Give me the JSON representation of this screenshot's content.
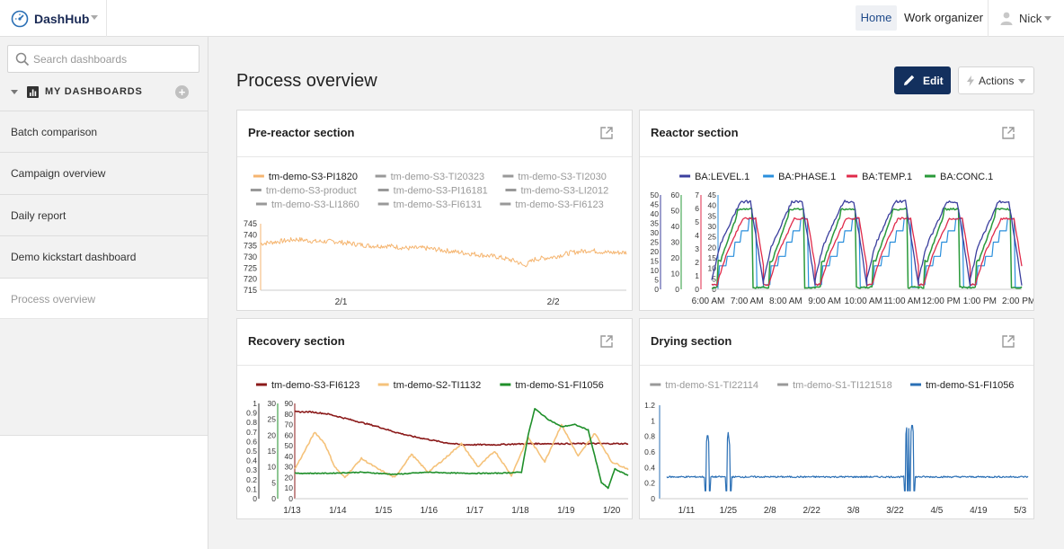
{
  "app": {
    "name": "DashHub"
  },
  "nav": {
    "home": "Home",
    "work_organizer": "Work organizer",
    "user": "Nick"
  },
  "sidebar": {
    "search_placeholder": "Search dashboards",
    "section_label": "MY DASHBOARDS",
    "add_label": "+",
    "items": [
      {
        "label": "Batch comparison"
      },
      {
        "label": "Campaign overview"
      },
      {
        "label": "Daily report"
      },
      {
        "label": "Demo kickstart dashboard"
      },
      {
        "label": "Process overview",
        "active": true
      }
    ]
  },
  "page": {
    "title": "Process overview",
    "edit_label": "Edit",
    "actions_label": "Actions"
  },
  "colors": {
    "accent": "#13305e",
    "brand": "#1a2a55"
  },
  "panels": {
    "pre_reactor": {
      "title": "Pre-reactor section"
    },
    "reactor": {
      "title": "Reactor section"
    },
    "recovery": {
      "title": "Recovery section"
    },
    "drying": {
      "title": "Drying section"
    }
  },
  "chart_data": [
    {
      "type": "line",
      "title": "Pre-reactor section",
      "legend": [
        {
          "name": "tm-demo-S3-PI1820",
          "color": "#f5b570",
          "active": true
        },
        {
          "name": "tm-demo-S3-TI20323",
          "color": "#999999",
          "active": false
        },
        {
          "name": "tm-demo-S3-TI2030",
          "color": "#999999",
          "active": false
        },
        {
          "name": "tm-demo-S3-product",
          "color": "#999999",
          "active": false
        },
        {
          "name": "tm-demo-S3-PI16181",
          "color": "#999999",
          "active": false
        },
        {
          "name": "tm-demo-S3-LI2012",
          "color": "#999999",
          "active": false
        },
        {
          "name": "tm-demo-S3-LI1860",
          "color": "#999999",
          "active": false
        },
        {
          "name": "tm-demo-S3-FI6131",
          "color": "#999999",
          "active": false
        },
        {
          "name": "tm-demo-S3-FI6123",
          "color": "#999999",
          "active": false
        }
      ],
      "x_ticks": [
        "2/1",
        "2/2"
      ],
      "y_ticks": [
        715,
        720,
        725,
        730,
        735,
        740,
        745
      ],
      "ylim": [
        715,
        745
      ],
      "series": [
        {
          "name": "tm-demo-S3-PI1820",
          "color": "#f5b570",
          "x": [
            0,
            0.05,
            0.1,
            0.15,
            0.2,
            0.25,
            0.3,
            0.35,
            0.4,
            0.45,
            0.5,
            0.55,
            0.6,
            0.65,
            0.7,
            0.72,
            0.75,
            0.8,
            0.85,
            0.9,
            0.95,
            1.0
          ],
          "y": [
            736,
            737,
            738,
            737,
            737,
            736,
            735,
            735,
            734,
            734,
            733,
            732,
            731,
            730,
            728,
            726,
            729,
            730,
            732,
            733,
            732,
            732
          ]
        }
      ]
    },
    {
      "type": "line",
      "title": "Reactor section",
      "legend": [
        {
          "name": "BA:LEVEL.1",
          "color": "#3b3f9e",
          "active": true
        },
        {
          "name": "BA:PHASE.1",
          "color": "#2a8fdc",
          "active": true
        },
        {
          "name": "BA:TEMP.1",
          "color": "#e02a4a",
          "active": true
        },
        {
          "name": "BA:CONC.1",
          "color": "#2a9a3a",
          "active": true
        }
      ],
      "x_ticks": [
        "6:00 AM",
        "7:00 AM",
        "8:00 AM",
        "9:00 AM",
        "10:00 AM",
        "11:00 AM",
        "12:00 PM",
        "1:00 PM",
        "2:00 PM"
      ],
      "y_axes": [
        {
          "ticks": [
            0,
            5,
            10,
            15,
            20,
            25,
            30,
            35,
            40,
            45,
            50
          ],
          "color": "#3b3f9e"
        },
        {
          "ticks": [
            0,
            10,
            20,
            30,
            40,
            50,
            60
          ],
          "color": "#2a9a3a"
        },
        {
          "ticks": [
            0,
            1,
            2,
            3,
            4,
            5,
            6,
            7
          ],
          "color": "#e02a4a"
        },
        {
          "ticks": [
            0,
            5,
            10,
            15,
            20,
            25,
            30,
            35,
            40,
            45
          ],
          "color": "#2a8fdc"
        }
      ],
      "cycles": 6
    },
    {
      "type": "line",
      "title": "Recovery section",
      "legend": [
        {
          "name": "tm-demo-S3-FI6123",
          "color": "#8b1a1a",
          "active": true
        },
        {
          "name": "tm-demo-S2-TI1132",
          "color": "#f5c27a",
          "active": true
        },
        {
          "name": "tm-demo-S1-FI1056",
          "color": "#1f8f2a",
          "active": true
        }
      ],
      "x_ticks": [
        "1/13",
        "1/14",
        "1/15",
        "1/16",
        "1/17",
        "1/18",
        "1/19",
        "1/20"
      ],
      "y_axes": [
        {
          "ticks": [
            0,
            0.1,
            0.2,
            0.3,
            0.4,
            0.5,
            0.6,
            0.7,
            0.8,
            0.9,
            1
          ],
          "color": "#333333"
        },
        {
          "ticks": [
            0,
            5,
            10,
            15,
            20,
            25,
            30
          ],
          "color": "#1f8f2a"
        },
        {
          "ticks": [
            0,
            10,
            20,
            30,
            40,
            50,
            60,
            70,
            80,
            90
          ],
          "color": "#8b1a1a"
        }
      ],
      "ylim": [
        0,
        90
      ],
      "series": [
        {
          "name": "tm-demo-S3-FI6123",
          "color": "#8b1a1a",
          "x": [
            0,
            0.05,
            0.1,
            0.15,
            0.2,
            0.25,
            0.3,
            0.35,
            0.4,
            0.45,
            0.5,
            0.55,
            0.6,
            0.7,
            0.8,
            0.9,
            1.0
          ],
          "y": [
            82,
            82,
            80,
            76,
            72,
            68,
            63,
            59,
            56,
            53,
            51,
            51,
            51,
            52,
            52,
            52,
            52
          ]
        },
        {
          "name": "tm-demo-S2-TI1132",
          "color": "#f5c27a",
          "x": [
            0,
            0.03,
            0.06,
            0.09,
            0.12,
            0.15,
            0.2,
            0.25,
            0.3,
            0.35,
            0.4,
            0.45,
            0.5,
            0.55,
            0.6,
            0.65,
            0.7,
            0.75,
            0.8,
            0.85,
            0.9,
            0.95,
            1.0
          ],
          "y": [
            28,
            45,
            63,
            52,
            30,
            20,
            38,
            28,
            20,
            42,
            25,
            38,
            52,
            30,
            45,
            22,
            58,
            35,
            70,
            40,
            62,
            35,
            28
          ]
        },
        {
          "name": "tm-demo-S1-FI1056",
          "color": "#1f8f2a",
          "x": [
            0,
            0.1,
            0.2,
            0.3,
            0.4,
            0.5,
            0.6,
            0.68,
            0.7,
            0.72,
            0.76,
            0.8,
            0.84,
            0.88,
            0.9,
            0.92,
            0.94,
            0.96,
            1.0
          ],
          "y": [
            24,
            24,
            25,
            23,
            25,
            24,
            24,
            25,
            60,
            85,
            75,
            68,
            70,
            65,
            40,
            15,
            10,
            28,
            22
          ]
        }
      ]
    },
    {
      "type": "line",
      "title": "Drying section",
      "legend": [
        {
          "name": "tm-demo-S1-TI22114",
          "color": "#999999",
          "active": false
        },
        {
          "name": "tm-demo-S1-TI121518",
          "color": "#999999",
          "active": false
        },
        {
          "name": "tm-demo-S1-FI1056",
          "color": "#2a6fb5",
          "active": true
        }
      ],
      "x_ticks": [
        "1/11",
        "1/25",
        "2/8",
        "2/22",
        "3/8",
        "3/22",
        "4/5",
        "4/19",
        "5/3"
      ],
      "y_ticks": [
        0,
        0.2,
        0.4,
        0.6,
        0.8,
        1,
        1.2
      ],
      "ylim": [
        0,
        1.2
      ],
      "series": [
        {
          "name": "tm-demo-S1-FI1056",
          "color": "#2a6fb5",
          "spikes": [
            {
              "x": 0.113,
              "y": 0.85
            },
            {
              "x": 0.17,
              "y": 0.85
            },
            {
              "x": 0.665,
              "y": 0.95
            },
            {
              "x": 0.672,
              "y": 0.98
            },
            {
              "x": 0.679,
              "y": 0.98
            }
          ],
          "baseline": 0.28
        }
      ]
    }
  ]
}
